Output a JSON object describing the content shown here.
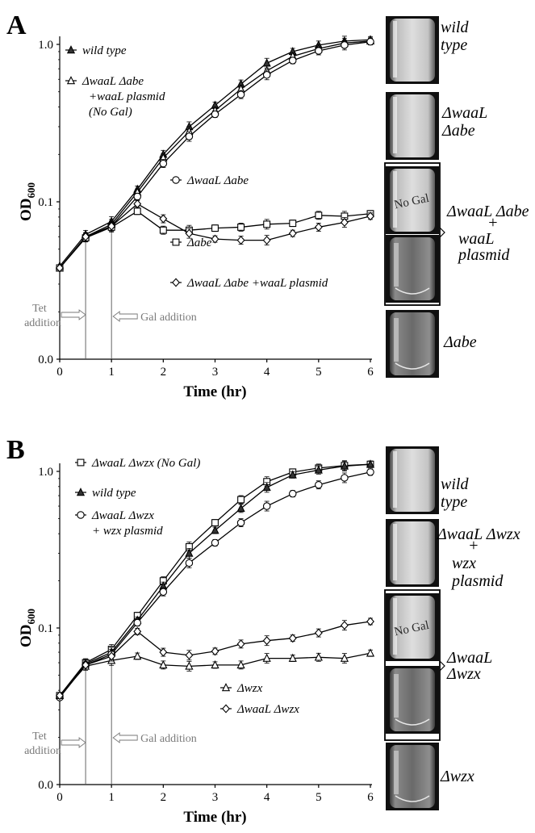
{
  "panels": [
    {
      "letter": "A",
      "ylabel": "OD600",
      "xlabel": "Time (hr)",
      "x_ticks": [
        "0",
        "1",
        "2",
        "3",
        "4",
        "5",
        "6"
      ],
      "y_ticks": [
        "0.0",
        "0.1",
        "1.0"
      ],
      "annotations": {
        "tet": [
          "Tet",
          "addition"
        ],
        "gal": "Gal addition"
      },
      "legend": [
        {
          "marker": "triangle",
          "lines": [
            "wild type"
          ]
        },
        {
          "marker": "triangle-open",
          "lines": [
            "ΔwaaL Δabe",
            "+waaL plasmid",
            "(No Gal)"
          ]
        },
        {
          "marker": "circle",
          "lines": [
            "ΔwaaL Δabe"
          ]
        },
        {
          "marker": "square",
          "lines": [
            "Δabe"
          ]
        },
        {
          "marker": "diamond",
          "lines": [
            "ΔwaaL Δabe +waaL plasmid"
          ]
        }
      ],
      "photos": [
        {
          "label": [
            "wild",
            "type"
          ],
          "style": "turbid",
          "nogal": ""
        },
        {
          "label": [
            "ΔwaaL",
            "Δabe"
          ],
          "style": "turbid",
          "nogal": ""
        },
        {
          "label": [],
          "style": "turbid",
          "nogal": "No Gal"
        },
        {
          "label": [],
          "style": "clear",
          "nogal": ""
        },
        {
          "label": [
            "Δabe"
          ],
          "style": "clear",
          "nogal": ""
        }
      ],
      "bracket_label": [
        "ΔwaaL Δabe",
        "+",
        "waaL",
        "plasmid"
      ]
    },
    {
      "letter": "B",
      "ylabel": "OD600",
      "xlabel": "Time (hr)",
      "x_ticks": [
        "0",
        "1",
        "2",
        "3",
        "4",
        "5",
        "6"
      ],
      "y_ticks": [
        "0.0",
        "0.1",
        "1.0"
      ],
      "annotations": {
        "tet": [
          "Tet",
          "addition"
        ],
        "gal": "Gal addition"
      },
      "legend": [
        {
          "marker": "square",
          "lines": [
            "ΔwaaL Δwzx (No Gal)"
          ]
        },
        {
          "marker": "triangle",
          "lines": [
            "wild type"
          ]
        },
        {
          "marker": "circle",
          "lines": [
            "ΔwaaL Δwzx",
            "+ wzx plasmid"
          ]
        },
        {
          "marker": "triangle-open",
          "lines": [
            "Δwzx"
          ]
        },
        {
          "marker": "diamond",
          "lines": [
            "ΔwaaL Δwzx"
          ]
        }
      ],
      "photos": [
        {
          "label": [
            "wild",
            "type"
          ],
          "style": "turbid",
          "nogal": ""
        },
        {
          "label": [
            "ΔwaaL Δwzx",
            "+",
            "wzx",
            "plasmid"
          ],
          "style": "turbid",
          "nogal": ""
        },
        {
          "label": [],
          "style": "turbid",
          "nogal": "No Gal"
        },
        {
          "label": [],
          "style": "clear",
          "nogal": ""
        },
        {
          "label": [
            "Δwzx"
          ],
          "style": "clear",
          "nogal": ""
        }
      ],
      "bracket_label": [
        "ΔwaaL",
        "Δwzx"
      ]
    }
  ],
  "chart_data": [
    {
      "type": "line",
      "title": "A",
      "xlabel": "Time (hr)",
      "ylabel": "OD600",
      "xlim": [
        0,
        6
      ],
      "y_scale": "log",
      "ylim": [
        0.01,
        1.1
      ],
      "x": [
        0,
        0.5,
        1,
        1.5,
        2,
        2.5,
        3,
        3.5,
        4,
        4.5,
        5,
        5.5,
        6
      ],
      "series": [
        {
          "name": "wild type",
          "marker": "triangle",
          "values": [
            0.039,
            0.062,
            0.075,
            0.12,
            0.2,
            0.3,
            0.41,
            0.56,
            0.76,
            0.9,
            0.99,
            1.05,
            1.07
          ]
        },
        {
          "name": "ΔwaaL Δabe +waaL plasmid (No Gal)",
          "marker": "triangle-open",
          "values": [
            0.038,
            0.06,
            0.072,
            0.115,
            0.19,
            0.28,
            0.38,
            0.52,
            0.68,
            0.84,
            0.94,
            1.02,
            1.05
          ]
        },
        {
          "name": "ΔwaaL Δabe",
          "marker": "circle",
          "values": [
            0.038,
            0.059,
            0.07,
            0.108,
            0.175,
            0.26,
            0.36,
            0.48,
            0.64,
            0.79,
            0.91,
            0.99,
            1.04
          ]
        },
        {
          "name": "Δabe",
          "marker": "square",
          "values": [
            0.038,
            0.059,
            0.069,
            0.087,
            0.066,
            0.066,
            0.068,
            0.069,
            0.072,
            0.073,
            0.082,
            0.081,
            0.084
          ]
        },
        {
          "name": "ΔwaaL Δabe +waaL plasmid",
          "marker": "diamond",
          "values": [
            0.038,
            0.06,
            0.07,
            0.097,
            0.078,
            0.063,
            0.058,
            0.057,
            0.057,
            0.063,
            0.069,
            0.074,
            0.081
          ]
        }
      ]
    },
    {
      "type": "line",
      "title": "B",
      "xlabel": "Time (hr)",
      "ylabel": "OD600",
      "xlim": [
        0,
        6
      ],
      "y_scale": "log",
      "ylim": [
        0.01,
        1.1
      ],
      "x": [
        0,
        0.5,
        1,
        1.5,
        2,
        2.5,
        3,
        3.5,
        4,
        4.5,
        5,
        5.5,
        6
      ],
      "series": [
        {
          "name": "ΔwaaL Δwzx (No Gal)",
          "marker": "square",
          "values": [
            0.037,
            0.06,
            0.073,
            0.12,
            0.2,
            0.33,
            0.47,
            0.66,
            0.86,
            0.99,
            1.05,
            1.09,
            1.11
          ]
        },
        {
          "name": "wild type",
          "marker": "triangle",
          "values": [
            0.037,
            0.059,
            0.07,
            0.112,
            0.185,
            0.3,
            0.42,
            0.58,
            0.79,
            0.95,
            1.02,
            1.08,
            1.11
          ]
        },
        {
          "name": "ΔwaaL Δwzx + wzx plasmid",
          "marker": "circle",
          "values": [
            0.036,
            0.058,
            0.068,
            0.108,
            0.17,
            0.26,
            0.35,
            0.47,
            0.6,
            0.72,
            0.82,
            0.91,
            0.99
          ]
        },
        {
          "name": "Δwzx",
          "marker": "triangle-open",
          "values": [
            0.037,
            0.057,
            0.062,
            0.066,
            0.058,
            0.057,
            0.058,
            0.058,
            0.064,
            0.064,
            0.065,
            0.064,
            0.069
          ]
        },
        {
          "name": "ΔwaaL Δwzx",
          "marker": "diamond",
          "values": [
            0.037,
            0.058,
            0.066,
            0.095,
            0.07,
            0.067,
            0.071,
            0.079,
            0.083,
            0.086,
            0.093,
            0.104,
            0.11
          ]
        }
      ]
    }
  ],
  "colors": {
    "ink": "#000000",
    "annotation": "#7a7a7a",
    "photo_dark": "#101010",
    "photo_turbid": "#cfcfcf",
    "photo_clear": "#9a9a9a"
  }
}
